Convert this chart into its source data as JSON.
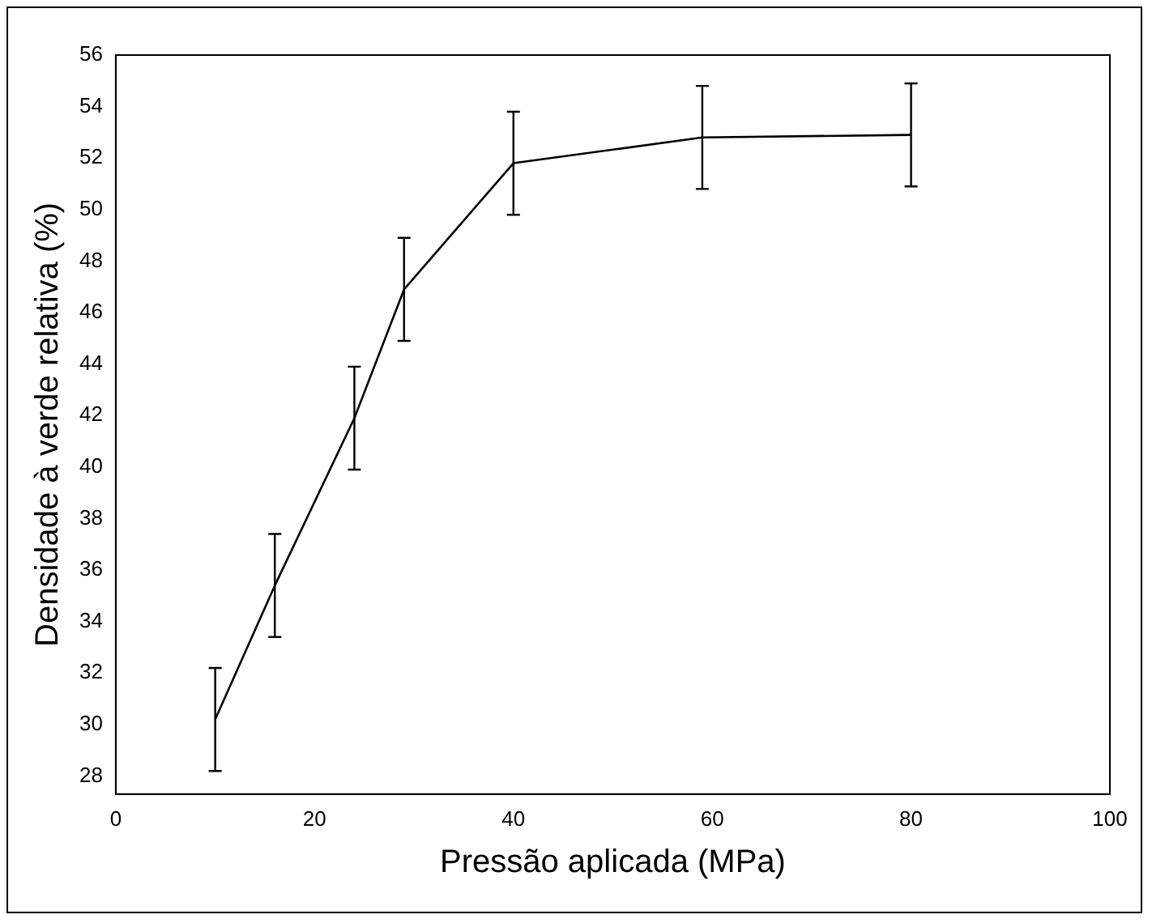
{
  "chart_data": {
    "type": "line",
    "xlabel": "Pressão aplicada (MPa)",
    "ylabel": "Densidade à verde relativa (%)",
    "x": [
      10,
      16,
      24,
      29,
      40,
      59,
      80
    ],
    "values": [
      30.2,
      35.4,
      41.9,
      46.9,
      51.8,
      52.8,
      52.9
    ],
    "errors": [
      2,
      2,
      2,
      2,
      2,
      2,
      2
    ],
    "color": "#000000",
    "marker": "none",
    "line_style": "solid",
    "grid": false,
    "legend": false,
    "xlim": [
      0,
      100
    ],
    "xticks": [
      0,
      20,
      40,
      60,
      80,
      100
    ],
    "ylim": [
      27.3,
      56
    ],
    "yticks": [
      28,
      30,
      32,
      34,
      36,
      38,
      40,
      42,
      44,
      46,
      48,
      50,
      52,
      54,
      56
    ]
  }
}
